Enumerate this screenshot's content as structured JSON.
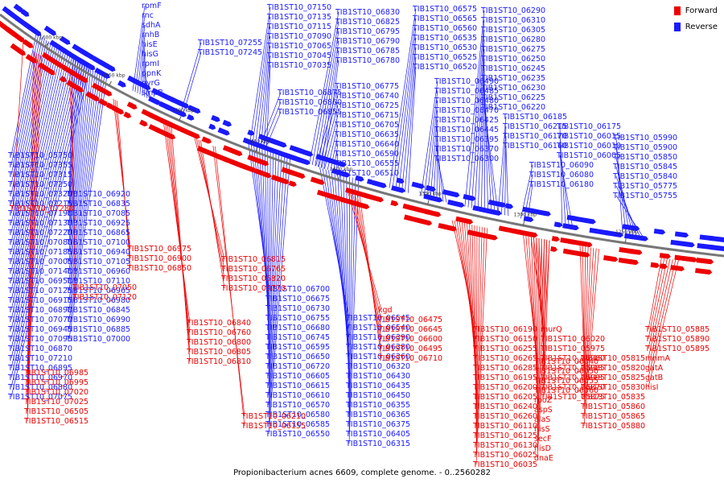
{
  "caption": "Propionibacterium acnes 6609, complete genome. - 0..2560282",
  "legend": [
    {
      "label": "Forward",
      "color": "#ee0000"
    },
    {
      "label": "Reverse",
      "color": "#1a1aff"
    }
  ],
  "axis_ticks": [
    "1600 kbp",
    "1550 kbp",
    "1500 kbp",
    "1450 kbp",
    "1400 kbp",
    "1350 kbp",
    "1300 kbp",
    "1250 kbp"
  ],
  "reverse_labels": [
    "rpmF",
    "rnc",
    "sdhA",
    "rnhB",
    "hisE",
    "hisG",
    "rpmI",
    "ppnK",
    "pyrG",
    "smpB",
    "TIB1ST10_07150",
    "TIB1ST10_07135",
    "TIB1ST10_07115",
    "TIB1ST10_07090",
    "TIB1ST10_07065",
    "TIB1ST10_07045",
    "TIB1ST10_07035",
    "TIB1ST10_07255",
    "TIB1ST10_07245",
    "TIB1ST10_06875",
    "TIB1ST10_06860",
    "TIB1ST10_06855",
    "TIB1ST10_06830",
    "TIB1ST10_06825",
    "TIB1ST10_06795",
    "TIB1ST10_06790",
    "TIB1ST10_06785",
    "TIB1ST10_06780",
    "TIB1ST10_06775",
    "TIB1ST10_06740",
    "TIB1ST10_06725",
    "TIB1ST10_06715",
    "TIB1ST10_06705",
    "TIB1ST10_06635",
    "TIB1ST10_06640",
    "TIB1ST10_06590",
    "TIB1ST10_06555",
    "TIB1ST10_06510",
    "TIB1ST10_06575",
    "TIB1ST10_06565",
    "TIB1ST10_06560",
    "TIB1ST10_06535",
    "TIB1ST10_06530",
    "TIB1ST10_06525",
    "TIB1ST10_06520",
    "TIB1ST10_06490",
    "TIB1ST10_06485",
    "TIB1ST10_06480",
    "TIB1ST10_06470",
    "TIB1ST10_06425",
    "TIB1ST10_06445",
    "TIB1ST10_06395",
    "TIB1ST10_06370",
    "TIB1ST10_06300",
    "TIB1ST10_06290",
    "TIB1ST10_06310",
    "TIB1ST10_06305",
    "TIB1ST10_06280",
    "TIB1ST10_06275",
    "TIB1ST10_06250",
    "TIB1ST10_06245",
    "TIB1ST10_06235",
    "TIB1ST10_06230",
    "TIB1ST10_06225",
    "TIB1ST10_06220",
    "TIB1ST10_06185",
    "TIB1ST10_06215",
    "TIB1ST10_06170",
    "TIB1ST10_06160",
    "TIB1ST10_06090",
    "TIB1ST10_06080",
    "TIB1ST10_06180",
    "TIB1ST10_06175",
    "TIB1ST10_06015",
    "TIB1ST10_06010",
    "TIB1ST10_06005",
    "TIB1ST10_05990",
    "TIB1ST10_05900",
    "TIB1ST10_05850",
    "TIB1ST10_05845",
    "TIB1ST10_05840",
    "TIB1ST10_05775",
    "TIB1ST10_05755",
    "TIB1ST10_05750",
    "TIB1ST10_07355",
    "TIB1ST10_07315",
    "TIB1ST10_07250",
    "TIB1ST10_07320",
    "TIB1ST10_07215",
    "TIB1ST10_07190",
    "TIB1ST10_07130",
    "TIB1ST10_07220",
    "TIB1ST10_07080",
    "TIB1ST10_07185",
    "TIB1ST10_07005",
    "TIB1ST10_07140",
    "TIB1ST10_06950",
    "TIB1ST10_07125",
    "TIB1ST10_06915",
    "TIB1ST10_06890",
    "TIB1ST10_07070",
    "TIB1ST10_06945",
    "TIB1ST10_07095",
    "TIB1ST10_06870",
    "TIB1ST10_07210",
    "TIB1ST10_06895",
    "TIB1ST10_06970",
    "TIB1ST10_06880",
    "TIB1ST10_07075",
    "TIB1ST10_06920",
    "TIB1ST10_06835",
    "TIB1ST10_07085",
    "TIB1ST10_06925",
    "TIB1ST10_06865",
    "TIB1ST10_07100",
    "TIB1ST10_06940",
    "TIB1ST10_07105",
    "TIB1ST10_06960",
    "TIB1ST10_07110",
    "TIB1ST10_06965",
    "TIB1ST10_06980",
    "TIB1ST10_06845",
    "TIB1ST10_06990",
    "TIB1ST10_06885",
    "TIB1ST10_07000",
    "TIB1ST10_06700",
    "TIB1ST10_06675",
    "TIB1ST10_06730",
    "TIB1ST10_06755",
    "TIB1ST10_06680",
    "TIB1ST10_06745",
    "TIB1ST10_06595",
    "TIB1ST10_06650",
    "TIB1ST10_06720",
    "TIB1ST10_06605",
    "TIB1ST10_06615",
    "TIB1ST10_06610",
    "TIB1ST10_06570",
    "TIB1ST10_06580",
    "TIB1ST10_06585",
    "TIB1ST10_06550",
    "TIB1ST10_06545",
    "TIB1ST10_06540",
    "TIB1ST10_06390",
    "TIB1ST10_06380",
    "TIB1ST10_06360",
    "TIB1ST10_06320",
    "TIB1ST10_06430",
    "TIB1ST10_06435",
    "TIB1ST10_06450",
    "TIB1ST10_06355",
    "TIB1ST10_06365",
    "TIB1ST10_06375",
    "TIB1ST10_06405",
    "TIB1ST10_06315"
  ],
  "forward_labels": [
    "TIB1ST10_07280",
    "TIB1ST10_06975",
    "TIB1ST10_06900",
    "TIB1ST10_06850",
    "TIB1ST10_06815",
    "TIB1ST10_06765",
    "TIB1ST10_06820",
    "TIB1ST10_06770",
    "TIB1ST10_07050",
    "TIB1ST10_07120",
    "TIB1ST10_06840",
    "TIB1ST10_06760",
    "TIB1ST10_06800",
    "TIB1ST10_06805",
    "TIB1ST10_06810",
    "TIB1ST10_06985",
    "TIB1ST10_06995",
    "TIB1ST10_07020",
    "TIB1ST10_07025",
    "TIB1ST10_06505",
    "TIB1ST10_06515",
    "kgd",
    "TIB1ST10_06475",
    "TIB1ST10_06645",
    "TIB1ST10_06600",
    "TIB1ST10_06495",
    "TIB1ST10_06710",
    "TIB1ST10_06210",
    "TIB1ST10_06155",
    "TIB1ST10_06190",
    "TIB1ST10_06150",
    "TIB1ST10_06255",
    "TIB1ST10_06265",
    "TIB1ST10_06285",
    "TIB1ST10_06195",
    "TIB1ST10_06200",
    "TIB1ST10_06205",
    "TIB1ST10_06240",
    "TIB1ST10_06260",
    "TIB1ST10_06110",
    "TIB1ST10_06125",
    "TIB1ST10_06130",
    "TIB1ST10_06025",
    "TIB1ST10_06035",
    "TIB1ST10_06040",
    "TIB1ST10_06050",
    "TIB1ST10_06055",
    "TIB1ST10_06060",
    "rpoZ",
    "aspS",
    "alaS",
    "hisS",
    "secF",
    "hisD",
    "dnaE",
    "murQ",
    "TIB1ST10_06020",
    "TIB1ST10_05975",
    "TIB1ST10_05980",
    "TIB1ST10_05985",
    "TIB1ST10_05995",
    "TIB1ST10_05870",
    "TIB1ST10_05875",
    "TIB1ST10_05815",
    "TIB1ST10_05820",
    "TIB1ST10_05825",
    "TIB1ST10_05830",
    "TIB1ST10_05835",
    "TIB1ST10_05860",
    "TIB1ST10_05865",
    "TIB1ST10_05880",
    "TIB1ST10_05885",
    "TIB1ST10_05890",
    "TIB1ST10_05895",
    "mnmA",
    "gatA",
    "gatB",
    "hisI"
  ]
}
